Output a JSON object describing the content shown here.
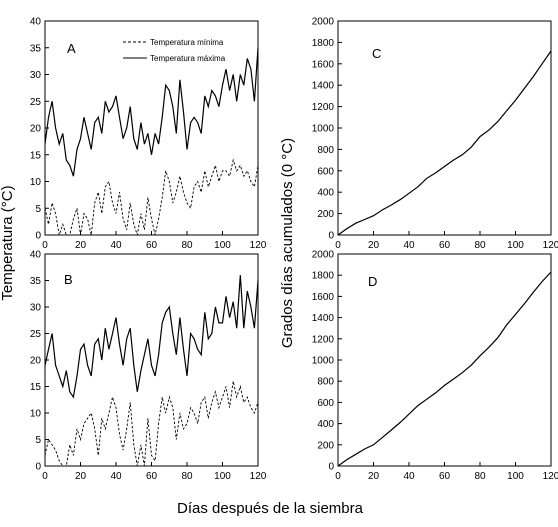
{
  "figure": {
    "xlabel": "Días después de la siembra",
    "ylabel_left": "Temperatura (°C)",
    "ylabel_right": "Grados días acumulados (0 °C)",
    "legend": {
      "min_label": "Temperatura mínima",
      "max_label": "Temperatura máxima"
    }
  },
  "chart_data": [
    {
      "panel": "A",
      "type": "line",
      "xlim": [
        0,
        120
      ],
      "ylim": [
        0,
        40
      ],
      "xticks": [
        "0",
        "20",
        "40",
        "60",
        "80",
        "100",
        "120"
      ],
      "yticks": [
        "0",
        "5",
        "10",
        "15",
        "20",
        "25",
        "30",
        "35",
        "40"
      ],
      "legend_position": "top-right",
      "series": [
        {
          "name": "Temperatura máxima",
          "style": "solid",
          "x": [
            0,
            2,
            4,
            6,
            8,
            10,
            12,
            14,
            16,
            18,
            20,
            22,
            24,
            26,
            28,
            30,
            32,
            34,
            36,
            38,
            40,
            42,
            44,
            46,
            48,
            50,
            52,
            54,
            56,
            58,
            60,
            62,
            64,
            66,
            68,
            70,
            72,
            74,
            76,
            78,
            80,
            82,
            84,
            86,
            88,
            90,
            92,
            94,
            96,
            98,
            100,
            102,
            104,
            106,
            108,
            110,
            112,
            114,
            116,
            118,
            120
          ],
          "y": [
            17,
            22,
            25,
            20,
            17,
            19,
            14,
            13,
            11,
            16,
            18,
            22,
            19,
            16,
            21,
            22,
            19,
            25,
            23,
            24,
            26,
            22,
            18,
            20,
            24,
            18,
            16,
            21,
            17,
            19,
            15,
            19,
            17,
            22,
            28,
            27,
            24,
            19,
            29,
            23,
            16,
            21,
            22,
            21,
            19,
            26,
            24,
            27,
            26,
            24,
            28,
            31,
            27,
            30,
            25,
            30,
            28,
            33,
            31,
            25,
            35
          ]
        },
        {
          "name": "Temperatura mínima",
          "style": "dashed",
          "x": [
            0,
            2,
            4,
            6,
            8,
            10,
            12,
            14,
            16,
            18,
            20,
            22,
            24,
            26,
            28,
            30,
            32,
            34,
            36,
            38,
            40,
            42,
            44,
            46,
            48,
            50,
            52,
            54,
            56,
            58,
            60,
            62,
            64,
            66,
            68,
            70,
            72,
            74,
            76,
            78,
            80,
            82,
            84,
            86,
            88,
            90,
            92,
            94,
            96,
            98,
            100,
            102,
            104,
            106,
            108,
            110,
            112,
            114,
            116,
            118,
            120
          ],
          "y": [
            5,
            2,
            6,
            4,
            0,
            2,
            0,
            0,
            3,
            5,
            0,
            4,
            3,
            0,
            6,
            8,
            4,
            9,
            10,
            6,
            4,
            8,
            3,
            1,
            6,
            2,
            0,
            4,
            1,
            7,
            3,
            0,
            3,
            7,
            12,
            10,
            6,
            8,
            11,
            8,
            6,
            5,
            9,
            10,
            8,
            12,
            9,
            11,
            13,
            10,
            12,
            12,
            11,
            14,
            12,
            13,
            11,
            12,
            10,
            9,
            13
          ]
        }
      ]
    },
    {
      "panel": "B",
      "type": "line",
      "xlim": [
        0,
        120
      ],
      "ylim": [
        0,
        40
      ],
      "xticks": [
        "0",
        "20",
        "40",
        "60",
        "80",
        "100",
        "120"
      ],
      "yticks": [
        "0",
        "5",
        "10",
        "15",
        "20",
        "25",
        "30",
        "35",
        "40"
      ],
      "series": [
        {
          "name": "Temperatura máxima",
          "style": "solid",
          "x": [
            0,
            2,
            4,
            6,
            8,
            10,
            12,
            14,
            16,
            18,
            20,
            22,
            24,
            26,
            28,
            30,
            32,
            34,
            36,
            38,
            40,
            42,
            44,
            46,
            48,
            50,
            52,
            54,
            56,
            58,
            60,
            62,
            64,
            66,
            68,
            70,
            72,
            74,
            76,
            78,
            80,
            82,
            84,
            86,
            88,
            90,
            92,
            94,
            96,
            98,
            100,
            102,
            104,
            106,
            108,
            110,
            112,
            114,
            116,
            118,
            120
          ],
          "y": [
            19,
            22,
            25,
            19,
            17,
            15,
            18,
            14,
            13,
            17,
            22,
            23,
            19,
            17,
            23,
            24,
            20,
            26,
            22,
            25,
            28,
            23,
            19,
            24,
            26,
            19,
            14,
            18,
            21,
            24,
            19,
            17,
            21,
            27,
            29,
            30,
            25,
            21,
            28,
            22,
            17,
            25,
            24,
            22,
            21,
            29,
            24,
            25,
            30,
            27,
            27,
            32,
            28,
            31,
            26,
            36,
            26,
            33,
            30,
            26,
            35
          ]
        },
        {
          "name": "Temperatura mínima",
          "style": "dashed",
          "x": [
            0,
            2,
            4,
            6,
            8,
            10,
            12,
            14,
            16,
            18,
            20,
            22,
            24,
            26,
            28,
            30,
            32,
            34,
            36,
            38,
            40,
            42,
            44,
            46,
            48,
            50,
            52,
            54,
            56,
            58,
            60,
            62,
            64,
            66,
            68,
            70,
            72,
            74,
            76,
            78,
            80,
            82,
            84,
            86,
            88,
            90,
            92,
            94,
            96,
            98,
            100,
            102,
            104,
            106,
            108,
            110,
            112,
            114,
            116,
            118,
            120
          ],
          "y": [
            2,
            5,
            4,
            3,
            1,
            0,
            0,
            4,
            2,
            7,
            5,
            8,
            9,
            10,
            7,
            2,
            9,
            7,
            10,
            13,
            11,
            6,
            3,
            7,
            12,
            4,
            0,
            4,
            0,
            9,
            2,
            1,
            8,
            13,
            10,
            13,
            11,
            5,
            10,
            7,
            8,
            11,
            10,
            8,
            12,
            13,
            9,
            12,
            14,
            11,
            13,
            15,
            11,
            16,
            13,
            15,
            12,
            13,
            11,
            10,
            12
          ]
        }
      ]
    },
    {
      "panel": "C",
      "type": "line",
      "xlim": [
        0,
        120
      ],
      "ylim": [
        0,
        2000
      ],
      "xticks": [
        "0",
        "20",
        "40",
        "60",
        "80",
        "100",
        "120"
      ],
      "yticks": [
        "0",
        "200",
        "400",
        "600",
        "800",
        "1000",
        "1200",
        "1400",
        "1600",
        "1800",
        "2000"
      ],
      "series": [
        {
          "name": "",
          "style": "solid",
          "x": [
            0,
            5,
            10,
            15,
            20,
            25,
            30,
            35,
            40,
            45,
            50,
            55,
            60,
            65,
            70,
            75,
            80,
            85,
            90,
            95,
            100,
            105,
            110,
            115,
            120
          ],
          "y": [
            0,
            60,
            110,
            145,
            180,
            235,
            280,
            330,
            390,
            450,
            530,
            580,
            640,
            700,
            750,
            820,
            920,
            980,
            1060,
            1160,
            1260,
            1370,
            1480,
            1600,
            1720
          ]
        }
      ]
    },
    {
      "panel": "D",
      "type": "line",
      "xlim": [
        0,
        120
      ],
      "ylim": [
        0,
        2000
      ],
      "xticks": [
        "0",
        "20",
        "40",
        "60",
        "80",
        "100",
        "120"
      ],
      "yticks": [
        "0",
        "200",
        "400",
        "600",
        "800",
        "1000",
        "1200",
        "1400",
        "1600",
        "1800",
        "2000"
      ],
      "series": [
        {
          "name": "",
          "style": "solid",
          "x": [
            0,
            5,
            10,
            15,
            20,
            25,
            30,
            35,
            40,
            45,
            50,
            55,
            60,
            65,
            70,
            75,
            80,
            85,
            90,
            95,
            100,
            105,
            110,
            115,
            120
          ],
          "y": [
            0,
            60,
            110,
            160,
            200,
            270,
            340,
            410,
            490,
            570,
            630,
            690,
            760,
            820,
            880,
            950,
            1040,
            1120,
            1210,
            1330,
            1430,
            1530,
            1640,
            1740,
            1830
          ]
        }
      ]
    }
  ]
}
